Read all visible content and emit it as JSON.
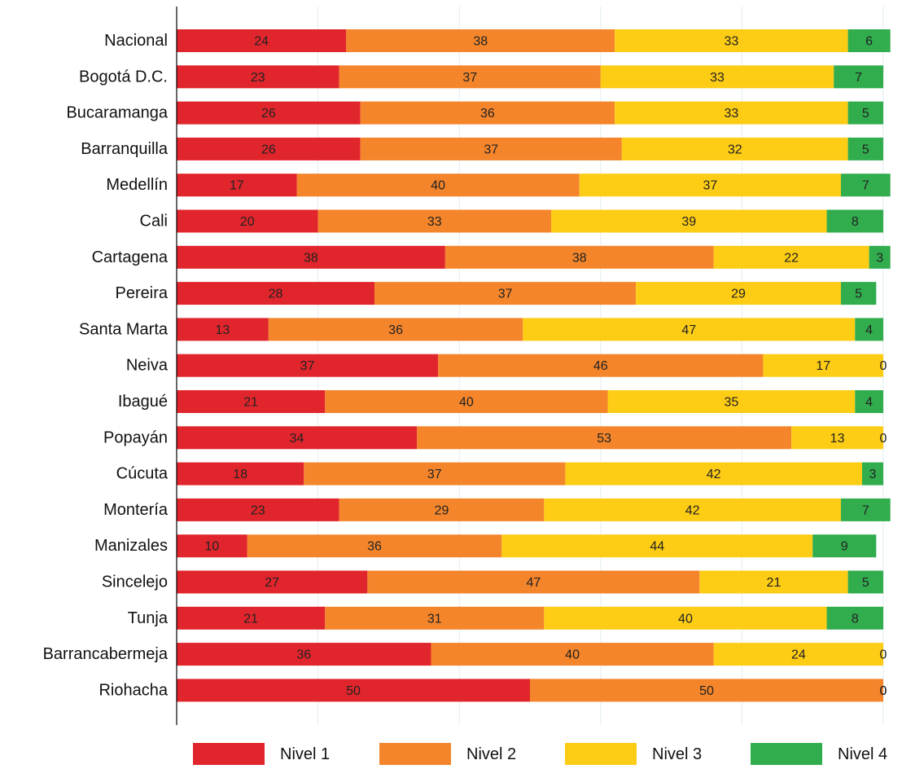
{
  "chart_data": {
    "type": "bar",
    "orientation": "horizontal",
    "stacked": true,
    "categories": [
      "Nacional",
      "Bogotá D.C.",
      "Bucaramanga",
      "Barranquilla",
      "Medellín",
      "Cali",
      "Cartagena",
      "Pereira",
      "Santa Marta",
      "Neiva",
      "Ibagué",
      "Popayán",
      "Cúcuta",
      "Montería",
      "Manizales",
      "Sincelejo",
      "Tunja",
      "Barrancabermeja",
      "Riohacha"
    ],
    "series": [
      {
        "name": "Nivel 1",
        "color": "#e1252c",
        "values": [
          24,
          23,
          26,
          26,
          17,
          20,
          38,
          28,
          13,
          37,
          21,
          34,
          18,
          23,
          10,
          27,
          21,
          36,
          50
        ]
      },
      {
        "name": "Nivel 2",
        "color": "#f4852b",
        "values": [
          38,
          37,
          36,
          37,
          40,
          33,
          38,
          37,
          36,
          46,
          40,
          53,
          37,
          29,
          36,
          47,
          31,
          40,
          50
        ]
      },
      {
        "name": "Nivel 3",
        "color": "#fdcc15",
        "values": [
          33,
          33,
          33,
          32,
          37,
          39,
          22,
          29,
          47,
          17,
          35,
          13,
          42,
          42,
          44,
          21,
          40,
          24,
          0
        ]
      },
      {
        "name": "Nivel 4",
        "color": "#32ad4e",
        "values": [
          6,
          7,
          5,
          5,
          7,
          8,
          3,
          5,
          4,
          0,
          4,
          0,
          3,
          7,
          9,
          5,
          8,
          0,
          0
        ]
      }
    ],
    "xlim": [
      0,
      100
    ],
    "grid": true,
    "legend": "bottom"
  }
}
